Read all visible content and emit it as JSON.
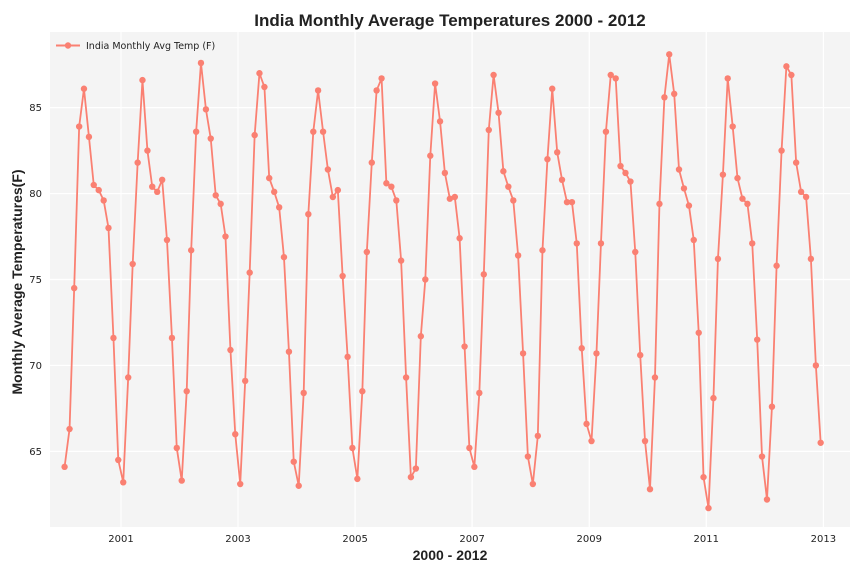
{
  "chart_data": {
    "type": "line",
    "title": "India Monthly Average Temperatures 2000 - 2012",
    "xlabel": "2000 - 2012",
    "ylabel": "Monthly Average Temperatures(F)",
    "x_ticks": [
      "2001",
      "2003",
      "2005",
      "2007",
      "2009",
      "2011",
      "2013"
    ],
    "y_ticks": [
      65,
      70,
      75,
      80,
      85
    ],
    "ylim": [
      60.6,
      89.4
    ],
    "xlim": [
      "1999-10-16",
      "2013-06-16"
    ],
    "grid": true,
    "legend_position": "top-left",
    "series_color": "#fa8072",
    "background_color": "#f4f4f4",
    "x": [
      "2000-01",
      "2000-02",
      "2000-03",
      "2000-04",
      "2000-05",
      "2000-06",
      "2000-07",
      "2000-08",
      "2000-09",
      "2000-10",
      "2000-11",
      "2000-12",
      "2001-01",
      "2001-02",
      "2001-03",
      "2001-04",
      "2001-05",
      "2001-06",
      "2001-07",
      "2001-08",
      "2001-09",
      "2001-10",
      "2001-11",
      "2001-12",
      "2002-01",
      "2002-02",
      "2002-03",
      "2002-04",
      "2002-05",
      "2002-06",
      "2002-07",
      "2002-08",
      "2002-09",
      "2002-10",
      "2002-11",
      "2002-12",
      "2003-01",
      "2003-02",
      "2003-03",
      "2003-04",
      "2003-05",
      "2003-06",
      "2003-07",
      "2003-08",
      "2003-09",
      "2003-10",
      "2003-11",
      "2003-12",
      "2004-01",
      "2004-02",
      "2004-03",
      "2004-04",
      "2004-05",
      "2004-06",
      "2004-07",
      "2004-08",
      "2004-09",
      "2004-10",
      "2004-11",
      "2004-12",
      "2005-01",
      "2005-02",
      "2005-03",
      "2005-04",
      "2005-05",
      "2005-06",
      "2005-07",
      "2005-08",
      "2005-09",
      "2005-10",
      "2005-11",
      "2005-12",
      "2006-01",
      "2006-02",
      "2006-03",
      "2006-04",
      "2006-05",
      "2006-06",
      "2006-07",
      "2006-08",
      "2006-09",
      "2006-10",
      "2006-11",
      "2006-12",
      "2007-01",
      "2007-02",
      "2007-03",
      "2007-04",
      "2007-05",
      "2007-06",
      "2007-07",
      "2007-08",
      "2007-09",
      "2007-10",
      "2007-11",
      "2007-12",
      "2008-01",
      "2008-02",
      "2008-03",
      "2008-04",
      "2008-05",
      "2008-06",
      "2008-07",
      "2008-08",
      "2008-09",
      "2008-10",
      "2008-11",
      "2008-12",
      "2009-01",
      "2009-02",
      "2009-03",
      "2009-04",
      "2009-05",
      "2009-06",
      "2009-07",
      "2009-08",
      "2009-09",
      "2009-10",
      "2009-11",
      "2009-12",
      "2010-01",
      "2010-02",
      "2010-03",
      "2010-04",
      "2010-05",
      "2010-06",
      "2010-07",
      "2010-08",
      "2010-09",
      "2010-10",
      "2010-11",
      "2010-12",
      "2011-01",
      "2011-02",
      "2011-03",
      "2011-04",
      "2011-05",
      "2011-06",
      "2011-07",
      "2011-08",
      "2011-09",
      "2011-10",
      "2011-11",
      "2011-12",
      "2012-01",
      "2012-02",
      "2012-03",
      "2012-04",
      "2012-05",
      "2012-06",
      "2012-07",
      "2012-08",
      "2012-09",
      "2012-10",
      "2012-11",
      "2012-12"
    ],
    "series": [
      {
        "name": "India Monthly Avg Temp (F)",
        "values": [
          64.1,
          66.3,
          74.5,
          83.9,
          86.1,
          83.3,
          80.5,
          80.2,
          79.6,
          78.0,
          71.6,
          64.5,
          63.2,
          69.3,
          75.9,
          81.8,
          86.6,
          82.5,
          80.4,
          80.1,
          80.8,
          77.3,
          71.6,
          65.2,
          63.3,
          68.5,
          76.7,
          83.6,
          87.6,
          84.9,
          83.2,
          79.9,
          79.4,
          77.5,
          70.9,
          66.0,
          63.1,
          69.1,
          75.4,
          83.4,
          87.0,
          86.2,
          80.9,
          80.1,
          79.2,
          76.3,
          70.8,
          64.4,
          63.0,
          68.4,
          78.8,
          83.6,
          86.0,
          83.6,
          81.4,
          79.8,
          80.2,
          75.2,
          70.5,
          65.2,
          63.4,
          68.5,
          76.6,
          81.8,
          86.0,
          86.7,
          80.6,
          80.4,
          79.6,
          76.1,
          69.3,
          63.5,
          64.0,
          71.7,
          75.0,
          82.2,
          86.4,
          84.2,
          81.2,
          79.7,
          79.8,
          77.4,
          71.1,
          65.2,
          64.1,
          68.4,
          75.3,
          83.7,
          86.9,
          84.7,
          81.3,
          80.4,
          79.6,
          76.4,
          70.7,
          64.7,
          63.1,
          65.9,
          76.7,
          82.0,
          86.1,
          82.4,
          80.8,
          79.5,
          79.5,
          77.1,
          71.0,
          66.6,
          65.6,
          70.7,
          77.1,
          83.6,
          86.9,
          86.7,
          81.6,
          81.2,
          80.7,
          76.6,
          70.6,
          65.6,
          62.8,
          69.3,
          79.4,
          85.6,
          88.1,
          85.8,
          81.4,
          80.3,
          79.3,
          77.3,
          71.9,
          63.5,
          61.7,
          68.1,
          76.2,
          81.1,
          86.7,
          83.9,
          80.9,
          79.7,
          79.4,
          77.1,
          71.5,
          64.7,
          62.2,
          67.6,
          75.8,
          82.5,
          87.4,
          86.9,
          81.8,
          80.1,
          79.8,
          76.2,
          70.0,
          65.5
        ]
      }
    ]
  }
}
